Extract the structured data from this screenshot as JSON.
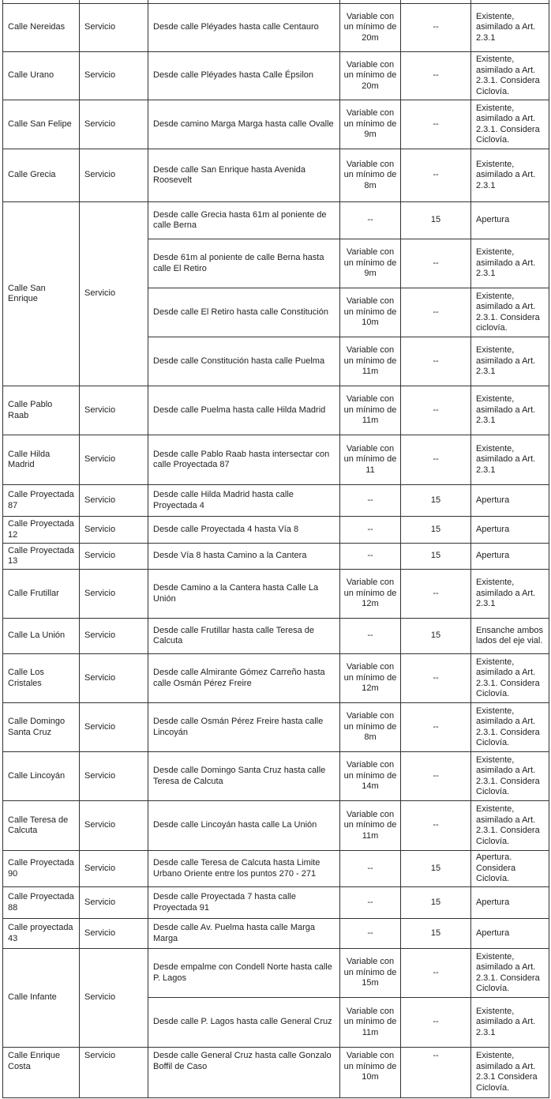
{
  "table": {
    "rows": [
      {
        "name": "Calle Nereidas",
        "type": "Servicio",
        "segments": [
          {
            "desc": "Desde calle Pléyades hasta calle Centauro",
            "width": "Variable con un mínimo de 20m",
            "lanes": "--",
            "obs": "Existente, asimilado a Art. 2.3.1"
          }
        ]
      },
      {
        "name": "Calle Urano",
        "type": "Servicio",
        "segments": [
          {
            "desc": "Desde calle Pléyades hasta Calle Épsilon",
            "width": "Variable con un mínimo de 20m",
            "lanes": "--",
            "obs": "Existente, asimilado a Art. 2.3.1. Considera Ciclovía."
          }
        ]
      },
      {
        "name": "Calle San Felipe",
        "type": "Servicio",
        "segments": [
          {
            "desc": "Desde camino Marga Marga hasta calle Ovalle",
            "width": "Variable con un mínimo de 9m",
            "lanes": "--",
            "obs": "Existente, asimilado a Art. 2.3.1. Considera Ciclovía."
          }
        ]
      },
      {
        "name": "Calle Grecia",
        "type": "Servicio",
        "segments": [
          {
            "desc": "Desde calle San Enrique hasta Avenida Roosevelt",
            "width": "Variable con un mínimo de 8m",
            "lanes": "--",
            "obs": "Existente, asimilado a Art. 2.3.1"
          }
        ]
      },
      {
        "name": "Calle San Enrique",
        "type": "Servicio",
        "segments": [
          {
            "desc": "Desde calle Grecia hasta 61m al poniente de calle Berna",
            "width": "--",
            "lanes": "15",
            "obs": "Apertura"
          },
          {
            "desc": "Desde 61m al poniente de calle Berna hasta calle El Retiro",
            "width": "Variable con un mínimo de 9m",
            "lanes": "--",
            "obs": "Existente, asimilado a Art. 2.3.1"
          },
          {
            "desc": "Desde calle El Retiro hasta calle Constitución",
            "width": "Variable con un mínimo de 10m",
            "lanes": "--",
            "obs": "Existente, asimilado a Art. 2.3.1. Considera ciclovía."
          },
          {
            "desc": "Desde calle Constitución hasta calle Puelma",
            "width": "Variable con un mínimo de 11m",
            "lanes": "--",
            "obs": "Existente, asimilado a Art. 2.3.1"
          }
        ]
      },
      {
        "name": "Calle Pablo Raab",
        "type": "Servicio",
        "segments": [
          {
            "desc": "Desde calle Puelma hasta calle Hilda Madrid",
            "width": "Variable con un mínimo de 11m",
            "lanes": "--",
            "obs": "Existente, asimilado a Art. 2.3.1"
          }
        ]
      },
      {
        "name": "Calle Hilda Madrid",
        "type": "Servicio",
        "segments": [
          {
            "desc": "Desde calle Pablo Raab hasta intersectar con calle Proyectada 87",
            "width": "Variable con un mínimo de 11",
            "lanes": "--",
            "obs": "Existente, asimilado a Art. 2.3.1"
          }
        ]
      },
      {
        "name": "Calle Proyectada 87",
        "type": "Servicio",
        "segments": [
          {
            "desc": "Desde calle Hilda Madrid hasta calle Proyectada 4",
            "width": "--",
            "lanes": "15",
            "obs": "Apertura"
          }
        ]
      },
      {
        "name": "Calle Proyectada 12",
        "type": "Servicio",
        "segments": [
          {
            "desc": "Desde calle Proyectada 4 hasta  Vía 8",
            "width": "--",
            "lanes": "15",
            "obs": "Apertura"
          }
        ]
      },
      {
        "name": "Calle Proyectada 13",
        "type": "Servicio",
        "segments": [
          {
            "desc": "Desde Vía 8 hasta Camino a la Cantera",
            "width": "--",
            "lanes": "15",
            "obs": "Apertura"
          }
        ]
      },
      {
        "name": "Calle Frutillar",
        "type": "Servicio",
        "segments": [
          {
            "desc": "Desde Camino a la Cantera hasta Calle La Unión",
            "width": "Variable con un mínimo de 12m",
            "lanes": "--",
            "obs": "Existente, asimilado a Art. 2.3.1"
          }
        ]
      },
      {
        "name": "Calle La Unión",
        "type": "Servicio",
        "segments": [
          {
            "desc": "Desde calle Frutillar hasta calle Teresa de Calcuta",
            "width": "--",
            "lanes": "15",
            "obs": "Ensanche ambos lados del eje vial."
          }
        ]
      },
      {
        "name": "Calle Los Cristales",
        "type": "Servicio",
        "segments": [
          {
            "desc": "Desde calle Almirante Gómez Carreño hasta calle Osmán Pérez Freire",
            "width": "Variable con un mínimo de 12m",
            "lanes": "--",
            "obs": "Existente, asimilado a Art. 2.3.1. Considera Ciclovía."
          }
        ]
      },
      {
        "name": "Calle Domingo Santa Cruz",
        "type": "Servicio",
        "segments": [
          {
            "desc": "Desde calle Osmán Pérez Freire hasta calle Lincoyán",
            "width": "Variable con un mínimo de 8m",
            "lanes": "--",
            "obs": "Existente, asimilado a Art. 2.3.1. Considera Ciclovía."
          }
        ]
      },
      {
        "name": "Calle Lincoyán",
        "type": "Servicio",
        "segments": [
          {
            "desc": "Desde calle Domingo Santa Cruz hasta calle Teresa de Calcuta",
            "width": "Variable con un mínimo de 14m",
            "lanes": "--",
            "obs": "Existente, asimilado a Art. 2.3.1. Considera Ciclovía."
          }
        ]
      },
      {
        "name": "Calle Teresa de Calcuta",
        "type": "Servicio",
        "segments": [
          {
            "desc": "Desde calle Lincoyán hasta calle La Unión",
            "width": "Variable con un mínimo de 11m",
            "lanes": "--",
            "obs": "Existente, asimilado a Art. 2.3.1. Considera Ciclovía."
          }
        ]
      },
      {
        "name": "Calle Proyectada 90",
        "type": "Servicio",
        "segments": [
          {
            "desc": "Desde calle Teresa de Calcuta hasta Limite Urbano Oriente entre los puntos 270 - 271",
            "width": "--",
            "lanes": "15",
            "obs": "Apertura. Considera Ciclovía."
          }
        ]
      },
      {
        "name": "Calle Proyectada 88",
        "type": "Servicio",
        "segments": [
          {
            "desc": "Desde calle Proyectada 7 hasta calle Proyectada 91",
            "width": "--",
            "lanes": "15",
            "obs": "Apertura"
          }
        ]
      },
      {
        "name": "Calle proyectada 43",
        "type": "Servicio",
        "segments": [
          {
            "desc": "Desde calle Av. Puelma hasta calle Marga Marga",
            "width": "--",
            "lanes": "15",
            "obs": "Apertura"
          }
        ]
      },
      {
        "name": "Calle Infante",
        "type": "Servicio",
        "segments": [
          {
            "desc": "Desde empalme con Condell Norte hasta calle P. Lagos",
            "width": "Variable con un mínimo de 15m",
            "lanes": "--",
            "obs": "Existente, asimilado a Art. 2.3.1. Considera Ciclovía."
          },
          {
            "desc": "Desde calle P. Lagos hasta calle General Cruz",
            "width": "Variable con un mínimo de 11m",
            "lanes": "--",
            "obs": "Existente, asimilado a Art. 2.3.1"
          }
        ]
      },
      {
        "name": "Calle Enrique Costa",
        "type": "Servicio",
        "segments": [
          {
            "desc": "Desde calle General Cruz hasta calle Gonzalo Boffil de Caso",
            "width": "Variable con un mínimo de 10m",
            "lanes": "--",
            "obs": "Existente, asimilado a Art. 2.3.1 Considera Ciclovía."
          }
        ]
      }
    ]
  }
}
